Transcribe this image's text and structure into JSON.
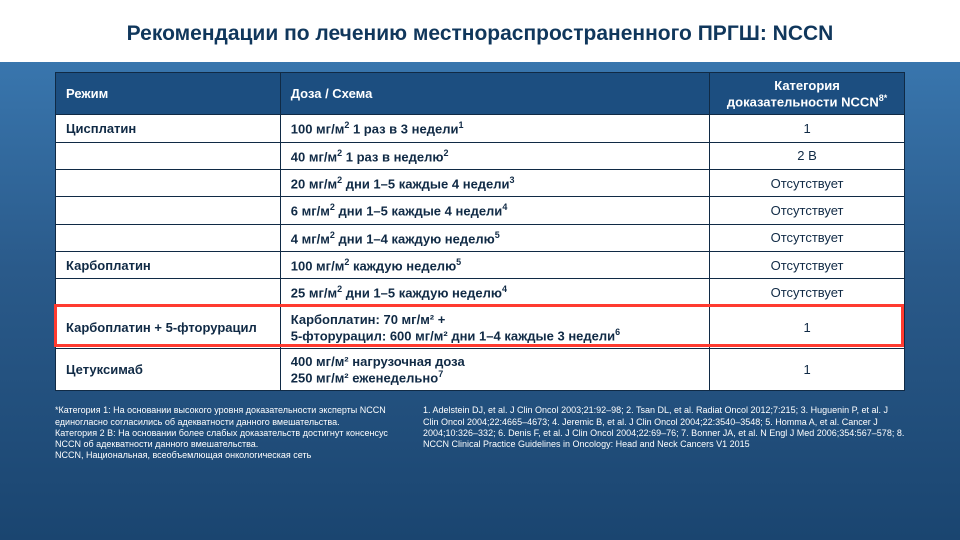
{
  "title": "Рекомендации по лечению местнораспространенного ПРГШ: NCCN",
  "headers": {
    "col1": "Режим",
    "col2": "Доза / Схема",
    "col3": "Категория доказательности NCCN",
    "col3_sup": "8*"
  },
  "rows": [
    {
      "c1": "Цисплатин",
      "c2": "100 мг/м",
      "sup": "2",
      "c2b": " 1 раз в 3 недели",
      "ref": "1",
      "c3": "1"
    },
    {
      "c1": "",
      "c2": "40 мг/м",
      "sup": "2",
      "c2b": " 1 раз в неделю",
      "ref": "2",
      "c3": "2 B"
    },
    {
      "c1": "",
      "c2": "20 мг/м",
      "sup": "2",
      "c2b": " дни 1–5 каждые 4 недели",
      "ref": "3",
      "c3": "Отсутствует"
    },
    {
      "c1": "",
      "c2": "6 мг/м",
      "sup": "2",
      "c2b": " дни 1–5 каждые 4 недели",
      "ref": "4",
      "c3": "Отсутствует"
    },
    {
      "c1": "",
      "c2": "4 мг/м",
      "sup": "2",
      "c2b": " дни 1–4 каждую неделю",
      "ref": "5",
      "c3": "Отсутствует"
    },
    {
      "c1": "Карбоплатин",
      "c2": "100 мг/м",
      "sup": "2",
      "c2b": " каждую неделю",
      "ref": "5",
      "c3": "Отсутствует"
    },
    {
      "c1": "",
      "c2": "25 мг/м",
      "sup": "2",
      "c2b": " дни 1–5 каждую неделю",
      "ref": "4",
      "c3": "Отсутствует"
    },
    {
      "c1": "Карбоплатин + 5-фторурацил",
      "c2_multi": "Карбоплатин: 70 мг/м² + \n5-фторурацил: 600 мг/м² дни 1–4 каждые 3 недели",
      "ref": "6",
      "c3": "1",
      "hl": true
    },
    {
      "c1": "Цетуксимаб",
      "c2_multi": "400 мг/м² нагрузочная доза\n250 мг/м² еженедельно",
      "ref": "7",
      "c3": "1"
    }
  ],
  "footer_left": "*Категория 1: На основании высокого уровня доказательности эксперты NCCN единогласно согласились об адекватности данного вмешательства.\nКатегория 2 В: На основании более слабых доказательств достигнут консенсус NCCN об адекватности данного вмешательства.\nNCCN, Национальная, всеобъемлющая онкологическая сеть",
  "footer_right": "1. Adelstein DJ, et al. J Clin Oncol 2003;21:92–98; 2. Tsan DL, et al. Radiat Oncol 2012;7:215; 3. Huguenin P, et al. J Clin Oncol 2004;22:4665–4673; 4. Jeremic B, et al. J Clin Oncol 2004;22:3540–3548; 5. Homma A, et al. Cancer J 2004;10:326–332; 6. Denis F, et al. J Clin Oncol 2004;22:69–76; 7. Bonner JA, et al. N Engl J Med 2006;354:567–578; 8. NCCN Clinical Practice Guidelines in Oncology: Head and Neck Cancers V1 2015"
}
